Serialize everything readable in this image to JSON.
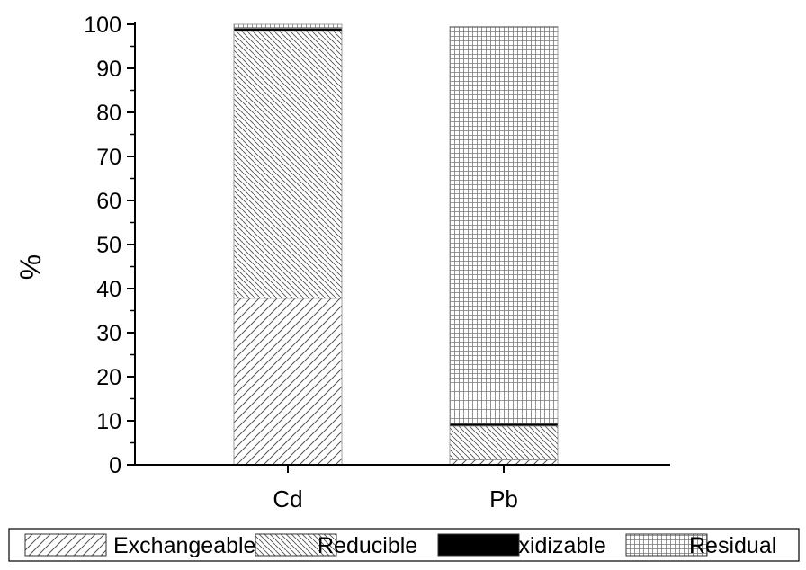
{
  "chart_data": {
    "type": "bar",
    "stacked": true,
    "title": "",
    "xlabel": "",
    "ylabel": "%",
    "ylim": [
      0,
      100
    ],
    "yticks": [
      0,
      10,
      20,
      30,
      40,
      50,
      60,
      70,
      80,
      90,
      100
    ],
    "categories": [
      "Cd",
      "Pb"
    ],
    "series": [
      {
        "name": "Exchangeable",
        "values": [
          37.8,
          1.1
        ],
        "pattern": "diagonal-up"
      },
      {
        "name": "Reducible",
        "values": [
          60.6,
          7.7
        ],
        "pattern": "diagonal-down"
      },
      {
        "name": "Oxidizable",
        "values": [
          0.7,
          0.6
        ],
        "pattern": "solid",
        "color": "#000000"
      },
      {
        "name": "Residual",
        "values": [
          0.9,
          90.1
        ],
        "pattern": "grid"
      }
    ],
    "grid": false,
    "legend_position": "bottom"
  }
}
